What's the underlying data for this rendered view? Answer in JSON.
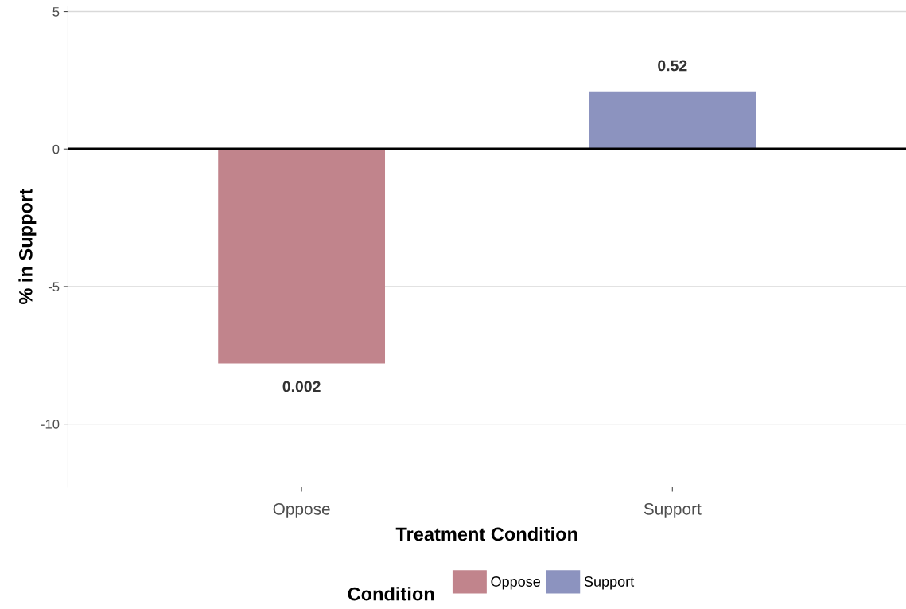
{
  "chart_data": {
    "type": "bar",
    "xlabel": "Treatment Condition",
    "ylabel": "% in Support",
    "legend_title": "Condition",
    "categories": [
      "Oppose",
      "Support"
    ],
    "series": [
      {
        "name": "Oppose",
        "color": "#c1848c",
        "values": [
          -7.8,
          null
        ]
      },
      {
        "name": "Support",
        "color": "#8c93bf",
        "values": [
          null,
          2.1
        ]
      }
    ],
    "ylim": [
      -12.3,
      5.2
    ],
    "yticks": [
      5,
      0,
      -5,
      -10
    ],
    "grid": "y",
    "legend": "bottom",
    "ref_lines": [
      {
        "axis": "y",
        "value": 0,
        "color": "#000000"
      }
    ],
    "annotations": [
      "0.002",
      "0.52"
    ]
  }
}
